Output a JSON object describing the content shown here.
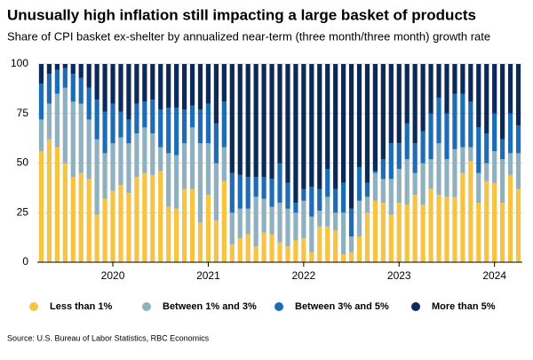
{
  "chart_data": {
    "type": "bar",
    "stacked": true,
    "title": "Unusually high inflation still impacting a large basket of products",
    "subtitle": "Share of CPI basket ex-shelter by annualized near-term (three month/three month) growth rate",
    "source": "Source: U.S. Bureau of Labor Statistics, RBC Economics",
    "categories": [
      null,
      null,
      null,
      null,
      null,
      null,
      null,
      null,
      null,
      "2020",
      null,
      null,
      null,
      null,
      null,
      null,
      null,
      null,
      null,
      null,
      null,
      "2021",
      null,
      null,
      null,
      null,
      null,
      null,
      null,
      null,
      null,
      null,
      null,
      "2022",
      null,
      null,
      null,
      null,
      null,
      null,
      null,
      null,
      null,
      null,
      null,
      "2023",
      null,
      null,
      null,
      null,
      null,
      null,
      null,
      null,
      null,
      null,
      null,
      "2024",
      null,
      null,
      null
    ],
    "series": [
      {
        "name": "Less than 1%",
        "color": "#f6c343",
        "values": [
          56,
          62,
          58,
          50,
          43,
          45,
          42,
          24,
          32,
          36,
          39,
          35,
          43,
          45,
          44,
          46,
          28,
          27,
          37,
          37,
          20,
          34,
          21,
          41,
          9,
          12,
          14,
          8,
          15,
          14,
          10,
          8,
          11,
          12,
          5,
          18,
          18,
          16,
          4,
          5,
          13,
          25,
          31,
          30,
          24,
          30,
          29,
          34,
          29,
          37,
          34,
          33,
          33,
          45,
          51,
          30,
          41,
          40,
          30,
          44,
          37
        ]
      },
      {
        "name": "Between 1% and 3%",
        "color": "#8fb0bf",
        "values": [
          16,
          18,
          27,
          38,
          38,
          35,
          30,
          38,
          23,
          24,
          24,
          25,
          22,
          23,
          21,
          12,
          27,
          27,
          23,
          31,
          40,
          26,
          29,
          17,
          16,
          15,
          13,
          25,
          17,
          14,
          20,
          19,
          14,
          19,
          18,
          8,
          15,
          9,
          21,
          8,
          18,
          8,
          14,
          12,
          18,
          17,
          23,
          11,
          21,
          15,
          26,
          19,
          24,
          13,
          7,
          15,
          9,
          16,
          22,
          11,
          18
        ]
      },
      {
        "name": "Between 3% and 5%",
        "color": "#1c6db5",
        "values": [
          18,
          15,
          12,
          10,
          14,
          13,
          16,
          20,
          21,
          20,
          13,
          12,
          15,
          13,
          17,
          19,
          23,
          24,
          17,
          11,
          17,
          20,
          20,
          23,
          20,
          17,
          16,
          10,
          11,
          14,
          20,
          13,
          5,
          6,
          15,
          11,
          14,
          12,
          15,
          14,
          17,
          7,
          1,
          10,
          18,
          13,
          18,
          15,
          16,
          23,
          23,
          23,
          28,
          27,
          23,
          23,
          15,
          19,
          10,
          20,
          14
        ]
      },
      {
        "name": "More than 5%",
        "color": "#0b2a58",
        "values": [
          10,
          5,
          3,
          2,
          5,
          7,
          12,
          18,
          24,
          20,
          24,
          28,
          20,
          19,
          18,
          23,
          22,
          22,
          23,
          21,
          23,
          20,
          30,
          19,
          55,
          56,
          57,
          57,
          57,
          58,
          50,
          60,
          70,
          63,
          62,
          63,
          53,
          63,
          60,
          73,
          52,
          60,
          54,
          48,
          40,
          40,
          30,
          40,
          34,
          25,
          17,
          25,
          15,
          15,
          19,
          32,
          35,
          25,
          38,
          25,
          31
        ]
      }
    ],
    "ylim": [
      0,
      100
    ],
    "yticks": [
      0,
      25,
      50,
      75,
      100
    ],
    "grid": true
  }
}
